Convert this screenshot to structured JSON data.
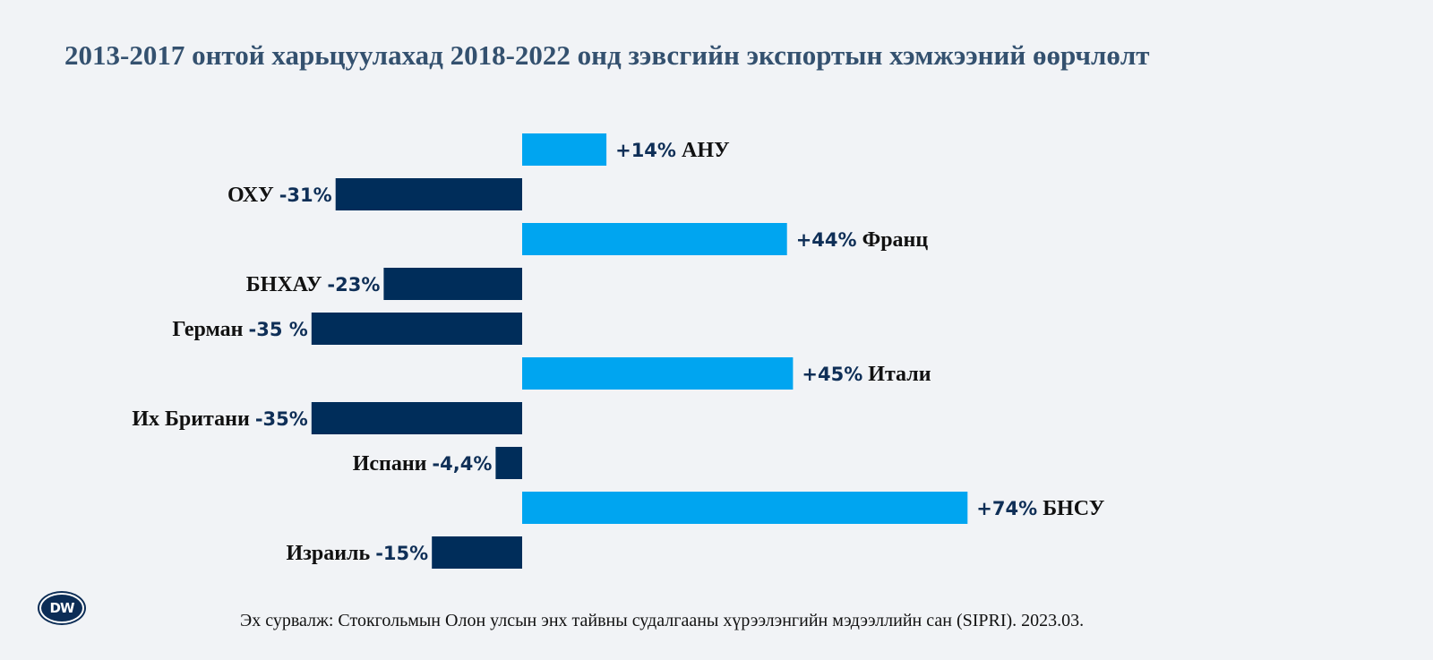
{
  "chart_data": {
    "type": "bar",
    "orientation": "horizontal",
    "title": "2013-2017 онтой харьцуулахад 2018-2022 онд зэвсгийн экспортын хэмжээний өөрчлөлт",
    "categories": [
      "АНУ",
      "ОХУ",
      "Франц",
      "БНХАУ",
      "Герман",
      "Итали",
      "Их Британи",
      "Испани",
      "БНСУ",
      "Израиль"
    ],
    "values": [
      14,
      -31,
      44,
      -23,
      -35,
      45,
      -35,
      -4.4,
      74,
      -15
    ],
    "value_labels": [
      "+14%",
      "-31%",
      "+44%",
      "-23%",
      "-35  %",
      "+45%",
      "-35%",
      "-4,4%",
      "+74%",
      "-15%"
    ],
    "unit": "%",
    "colors": {
      "positive": "#00a5f0",
      "negative": "#002d5a"
    },
    "grid": false,
    "legend": "none"
  },
  "brand": {
    "logo_text": "DW"
  },
  "source": "Эх сурвалж: Стокгольмын Олон улсын энх тайвны судалгааны хүрээлэнгийн мэдээллийн сан (SIPRI). 2023.03."
}
